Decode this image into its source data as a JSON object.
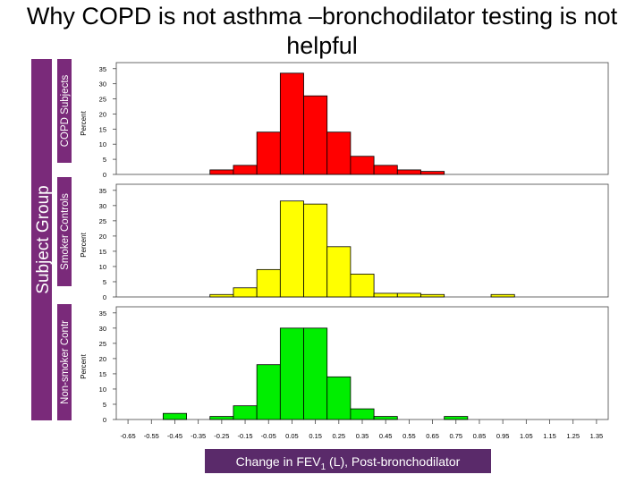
{
  "title": {
    "line1": "Why COPD is not asthma –bronchodilator testing is not",
    "line2": "helpful"
  },
  "group_axis_label": "Subject Group",
  "x_axis_title": {
    "prefix": "Change in FEV",
    "subscript": "1",
    "suffix": " (L), Post-bronchodilator"
  },
  "colors": {
    "copd": "#ff0000",
    "smoker": "#ffff00",
    "nonsmoker": "#00ee00",
    "group_band": "#7a2a7a",
    "xlabel_bg": "#5a2a6a"
  },
  "chart_data": {
    "type": "bar",
    "bin_width": 0.1,
    "x_ticks": [
      "-0.65",
      "-0.55",
      "-0.45",
      "-0.35",
      "-0.25",
      "-0.15",
      "-0.05",
      "0.05",
      "0.15",
      "0.25",
      "0.35",
      "0.45",
      "0.55",
      "0.65",
      "0.75",
      "0.85",
      "0.95",
      "1.05",
      "1.15",
      "1.25",
      "1.35"
    ],
    "y_ticks": [
      "0",
      "5",
      "10",
      "15",
      "20",
      "25",
      "30",
      "35"
    ],
    "ylim": [
      0,
      37
    ],
    "xlim": [
      -0.7,
      1.4
    ],
    "ylabel": "Percent",
    "xlabel": "Change in FEV1 (L), Post-bronchodilator",
    "panels": [
      {
        "name": "COPD Subjects",
        "color": "#ff0000",
        "bin_centers": [
          -0.25,
          -0.15,
          -0.05,
          0.05,
          0.15,
          0.25,
          0.35,
          0.45,
          0.55,
          0.65
        ],
        "values": [
          1.5,
          3,
          14,
          33.5,
          26,
          14,
          6,
          3,
          1.5,
          1
        ]
      },
      {
        "name": "Smoker Controls",
        "color": "#ffff00",
        "bin_centers": [
          -0.25,
          -0.15,
          -0.05,
          0.05,
          0.15,
          0.25,
          0.35,
          0.45,
          0.55,
          0.65,
          0.95
        ],
        "values": [
          0.8,
          3,
          9,
          31.5,
          30.5,
          16.5,
          7.5,
          1.2,
          1.2,
          0.8,
          0.8
        ]
      },
      {
        "name": "Non-smoker Contr",
        "color": "#00ee00",
        "bin_centers": [
          -0.45,
          -0.25,
          -0.15,
          -0.05,
          0.05,
          0.15,
          0.25,
          0.35,
          0.45,
          0.75
        ],
        "values": [
          2,
          1,
          4.5,
          18,
          30,
          30,
          14,
          3.5,
          1,
          1
        ]
      }
    ]
  }
}
